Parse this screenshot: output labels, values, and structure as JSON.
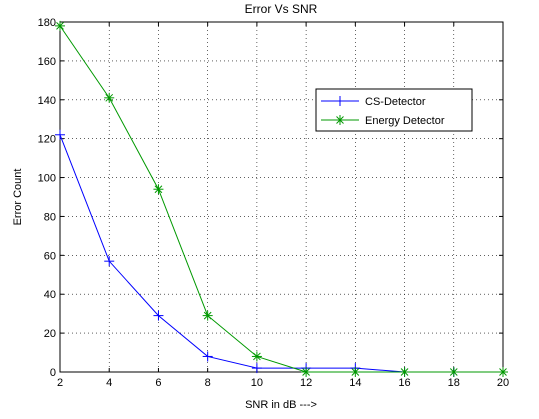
{
  "chart_data": {
    "type": "line",
    "title": "Error Vs SNR",
    "xlabel": "SNR in dB --->",
    "ylabel": "Error Count",
    "xlim": [
      2,
      20
    ],
    "ylim": [
      0,
      180
    ],
    "x_ticks": [
      "2",
      "4",
      "6",
      "8",
      "10",
      "12",
      "14",
      "16",
      "18",
      "20"
    ],
    "y_ticks": [
      "0",
      "20",
      "40",
      "60",
      "80",
      "100",
      "120",
      "140",
      "160",
      "180"
    ],
    "grid": true,
    "legend_position": "right",
    "x": [
      2,
      4,
      6,
      8,
      10,
      12,
      14,
      16,
      18,
      20
    ],
    "series": [
      {
        "name": "CS-Detector",
        "color": "#0000ff",
        "marker": "plus",
        "values": [
          122,
          57,
          29,
          8,
          2,
          2,
          2,
          0,
          0,
          0
        ]
      },
      {
        "name": "Energy Detector",
        "color": "#009900",
        "marker": "star",
        "values": [
          178,
          141,
          94,
          29,
          8,
          0,
          0,
          0,
          0,
          0
        ]
      }
    ]
  }
}
